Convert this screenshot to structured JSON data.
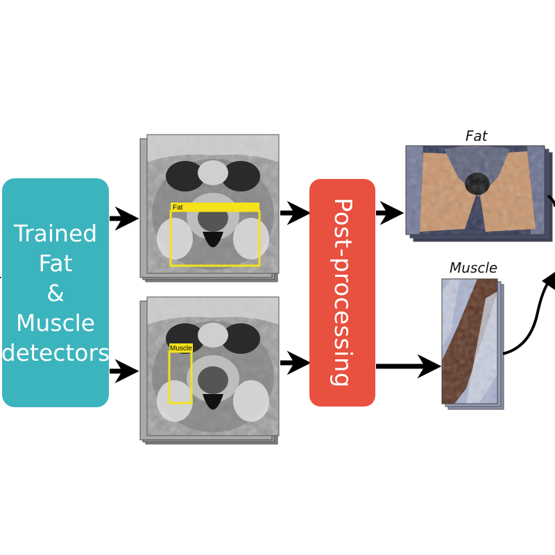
{
  "detector": {
    "lines": [
      "Trained",
      "Fat",
      "&",
      "Muscle",
      "detectors"
    ]
  },
  "post_processing": {
    "label": "Post-processing"
  },
  "mri_top": {
    "box_label": "Fat",
    "box_color": "#f5e21b"
  },
  "mri_bottom": {
    "box_label": "Muscle",
    "box_color": "#f5e21b"
  },
  "outputs": {
    "fat": {
      "caption": "Fat",
      "overlay_color": "#c8946a",
      "background_color": "#2f3553"
    },
    "muscle": {
      "caption": "Muscle",
      "overlay_color": "#5a3220",
      "background_color": "#a9b2cf"
    }
  },
  "colors": {
    "detector_fill": "#3cb4bd",
    "post_fill": "#e8503f",
    "arrow": "#000000"
  }
}
